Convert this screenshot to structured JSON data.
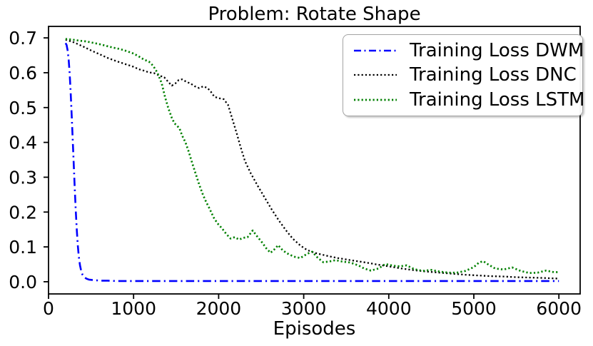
{
  "chart_data": {
    "type": "line",
    "title": "Problem: Rotate Shape",
    "xlabel": "Episodes",
    "ylabel": "",
    "xlim": [
      0,
      6250
    ],
    "ylim": [
      -0.035,
      0.733
    ],
    "grid": false,
    "legend_position": "upper right",
    "axis_color": "#000000",
    "x_ticks": [
      0,
      1000,
      2000,
      3000,
      4000,
      5000,
      6000
    ],
    "x_tick_labels": [
      "0",
      "1000",
      "2000",
      "3000",
      "4000",
      "5000",
      "6000"
    ],
    "y_ticks": [
      0.0,
      0.1,
      0.2,
      0.3,
      0.4,
      0.5,
      0.6,
      0.7
    ],
    "y_tick_labels": [
      "0.0",
      "0.1",
      "0.2",
      "0.3",
      "0.4",
      "0.5",
      "0.6",
      "0.7"
    ],
    "series": [
      {
        "name": "Training Loss DWM",
        "color": "#0000ff",
        "line_style": "dashdot",
        "line_width": 2.6,
        "points": [
          [
            200,
            0.685
          ],
          [
            212,
            0.68
          ],
          [
            224,
            0.665
          ],
          [
            236,
            0.64
          ],
          [
            248,
            0.6
          ],
          [
            260,
            0.545
          ],
          [
            272,
            0.48
          ],
          [
            284,
            0.41
          ],
          [
            296,
            0.34
          ],
          [
            308,
            0.27
          ],
          [
            320,
            0.205
          ],
          [
            332,
            0.15
          ],
          [
            344,
            0.105
          ],
          [
            356,
            0.072
          ],
          [
            370,
            0.047
          ],
          [
            385,
            0.03
          ],
          [
            400,
            0.02
          ],
          [
            420,
            0.013
          ],
          [
            445,
            0.009
          ],
          [
            475,
            0.006
          ],
          [
            515,
            0.005
          ],
          [
            560,
            0.004
          ],
          [
            620,
            0.003
          ],
          [
            700,
            0.003
          ],
          [
            800,
            0.002
          ],
          [
            1000,
            0.002
          ],
          [
            1250,
            0.002
          ],
          [
            1500,
            0.002
          ],
          [
            1750,
            0.002
          ],
          [
            2000,
            0.002
          ],
          [
            2250,
            0.002
          ],
          [
            2500,
            0.002
          ],
          [
            2750,
            0.002
          ],
          [
            3000,
            0.002
          ],
          [
            3250,
            0.002
          ],
          [
            3500,
            0.002
          ],
          [
            3750,
            0.002
          ],
          [
            4000,
            0.002
          ],
          [
            4250,
            0.002
          ],
          [
            4500,
            0.002
          ],
          [
            4750,
            0.002
          ],
          [
            5000,
            0.002
          ],
          [
            5250,
            0.002
          ],
          [
            5500,
            0.002
          ],
          [
            5750,
            0.002
          ],
          [
            6000,
            0.002
          ]
        ]
      },
      {
        "name": "Training Loss DNC",
        "color": "#000000",
        "line_style": "dotted",
        "line_width": 2.3,
        "points": [
          [
            200,
            0.695
          ],
          [
            300,
            0.687
          ],
          [
            400,
            0.676
          ],
          [
            500,
            0.664
          ],
          [
            600,
            0.653
          ],
          [
            700,
            0.642
          ],
          [
            800,
            0.633
          ],
          [
            900,
            0.625
          ],
          [
            1000,
            0.617
          ],
          [
            1060,
            0.61
          ],
          [
            1120,
            0.606
          ],
          [
            1180,
            0.601
          ],
          [
            1240,
            0.599
          ],
          [
            1300,
            0.592
          ],
          [
            1360,
            0.587
          ],
          [
            1410,
            0.573
          ],
          [
            1450,
            0.563
          ],
          [
            1490,
            0.569
          ],
          [
            1530,
            0.579
          ],
          [
            1570,
            0.581
          ],
          [
            1620,
            0.574
          ],
          [
            1670,
            0.569
          ],
          [
            1720,
            0.561
          ],
          [
            1770,
            0.556
          ],
          [
            1820,
            0.561
          ],
          [
            1870,
            0.556
          ],
          [
            1910,
            0.545
          ],
          [
            1950,
            0.531
          ],
          [
            2000,
            0.527
          ],
          [
            2060,
            0.524
          ],
          [
            2110,
            0.508
          ],
          [
            2160,
            0.468
          ],
          [
            2210,
            0.428
          ],
          [
            2260,
            0.385
          ],
          [
            2310,
            0.346
          ],
          [
            2380,
            0.31
          ],
          [
            2460,
            0.275
          ],
          [
            2540,
            0.242
          ],
          [
            2620,
            0.209
          ],
          [
            2710,
            0.175
          ],
          [
            2790,
            0.148
          ],
          [
            2870,
            0.124
          ],
          [
            2960,
            0.104
          ],
          [
            3040,
            0.091
          ],
          [
            3130,
            0.083
          ],
          [
            3210,
            0.078
          ],
          [
            3300,
            0.073
          ],
          [
            3400,
            0.068
          ],
          [
            3500,
            0.064
          ],
          [
            3600,
            0.06
          ],
          [
            3710,
            0.056
          ],
          [
            3850,
            0.05
          ],
          [
            4000,
            0.044
          ],
          [
            4150,
            0.038
          ],
          [
            4300,
            0.033
          ],
          [
            4450,
            0.029
          ],
          [
            4600,
            0.026
          ],
          [
            4750,
            0.023
          ],
          [
            4900,
            0.02
          ],
          [
            5050,
            0.018
          ],
          [
            5200,
            0.016
          ],
          [
            5350,
            0.015
          ],
          [
            5500,
            0.013
          ],
          [
            5650,
            0.012
          ],
          [
            5800,
            0.011
          ],
          [
            5900,
            0.01
          ],
          [
            6000,
            0.009
          ]
        ]
      },
      {
        "name": "Training Loss LSTM",
        "color": "#008000",
        "line_style": "dotted",
        "line_width": 2.7,
        "points": [
          [
            200,
            0.697
          ],
          [
            280,
            0.695
          ],
          [
            360,
            0.692
          ],
          [
            440,
            0.69
          ],
          [
            520,
            0.686
          ],
          [
            600,
            0.682
          ],
          [
            680,
            0.677
          ],
          [
            760,
            0.672
          ],
          [
            840,
            0.668
          ],
          [
            920,
            0.662
          ],
          [
            1000,
            0.655
          ],
          [
            1060,
            0.647
          ],
          [
            1120,
            0.638
          ],
          [
            1180,
            0.632
          ],
          [
            1230,
            0.62
          ],
          [
            1280,
            0.6
          ],
          [
            1330,
            0.57
          ],
          [
            1370,
            0.53
          ],
          [
            1410,
            0.497
          ],
          [
            1450,
            0.47
          ],
          [
            1480,
            0.455
          ],
          [
            1510,
            0.448
          ],
          [
            1540,
            0.44
          ],
          [
            1570,
            0.42
          ],
          [
            1610,
            0.4
          ],
          [
            1650,
            0.372
          ],
          [
            1690,
            0.34
          ],
          [
            1730,
            0.31
          ],
          [
            1770,
            0.28
          ],
          [
            1815,
            0.25
          ],
          [
            1855,
            0.228
          ],
          [
            1895,
            0.209
          ],
          [
            1940,
            0.185
          ],
          [
            1985,
            0.168
          ],
          [
            2040,
            0.153
          ],
          [
            2090,
            0.137
          ],
          [
            2140,
            0.124
          ],
          [
            2190,
            0.128
          ],
          [
            2240,
            0.121
          ],
          [
            2290,
            0.126
          ],
          [
            2340,
            0.128
          ],
          [
            2400,
            0.147
          ],
          [
            2450,
            0.131
          ],
          [
            2510,
            0.113
          ],
          [
            2560,
            0.096
          ],
          [
            2610,
            0.083
          ],
          [
            2660,
            0.094
          ],
          [
            2700,
            0.105
          ],
          [
            2750,
            0.091
          ],
          [
            2800,
            0.082
          ],
          [
            2850,
            0.076
          ],
          [
            2900,
            0.071
          ],
          [
            2960,
            0.068
          ],
          [
            3040,
            0.08
          ],
          [
            3100,
            0.086
          ],
          [
            3160,
            0.07
          ],
          [
            3230,
            0.056
          ],
          [
            3300,
            0.058
          ],
          [
            3375,
            0.062
          ],
          [
            3450,
            0.058
          ],
          [
            3550,
            0.055
          ],
          [
            3650,
            0.046
          ],
          [
            3710,
            0.038
          ],
          [
            3790,
            0.032
          ],
          [
            3880,
            0.038
          ],
          [
            3960,
            0.051
          ],
          [
            4050,
            0.046
          ],
          [
            4130,
            0.044
          ],
          [
            4210,
            0.047
          ],
          [
            4300,
            0.036
          ],
          [
            4400,
            0.031
          ],
          [
            4500,
            0.034
          ],
          [
            4600,
            0.029
          ],
          [
            4700,
            0.026
          ],
          [
            4800,
            0.026
          ],
          [
            4900,
            0.031
          ],
          [
            5000,
            0.042
          ],
          [
            5060,
            0.055
          ],
          [
            5110,
            0.059
          ],
          [
            5160,
            0.051
          ],
          [
            5250,
            0.038
          ],
          [
            5350,
            0.035
          ],
          [
            5450,
            0.041
          ],
          [
            5550,
            0.031
          ],
          [
            5650,
            0.025
          ],
          [
            5750,
            0.026
          ],
          [
            5850,
            0.032
          ],
          [
            5950,
            0.027
          ],
          [
            6000,
            0.028
          ]
        ]
      }
    ]
  }
}
